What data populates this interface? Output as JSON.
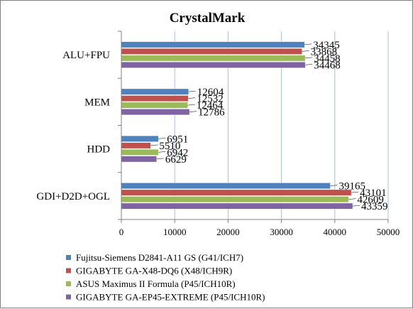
{
  "chart_data": {
    "type": "bar",
    "orientation": "horizontal",
    "title": "CrystalMark",
    "categories": [
      "ALU+FPU",
      "MEM",
      "HDD",
      "GDI+D2D+OGL"
    ],
    "xlim": [
      0,
      50000
    ],
    "xticks": [
      0,
      10000,
      20000,
      30000,
      40000,
      50000
    ],
    "grid": "vertical",
    "legend_position": "bottom",
    "series": [
      {
        "name": "Fujitsu-Siemens D2841-A11 GS (G41/ICH7)",
        "color": "#4f81bd",
        "values": [
          34345,
          12604,
          6951,
          39165
        ]
      },
      {
        "name": "GIGABYTE GA-X48-DQ6 (X48/ICH9R)",
        "color": "#c0504d",
        "values": [
          33868,
          12532,
          5510,
          43101
        ]
      },
      {
        "name": "ASUS Maximus II Formula (P45/ICH10R)",
        "color": "#9bbb59",
        "values": [
          34458,
          12464,
          6942,
          42609
        ]
      },
      {
        "name": "GIGABYTE GA-EP45-EXTREME (P45/ICH10R)",
        "color": "#8064a2",
        "values": [
          34468,
          12786,
          6629,
          43359
        ]
      }
    ]
  }
}
